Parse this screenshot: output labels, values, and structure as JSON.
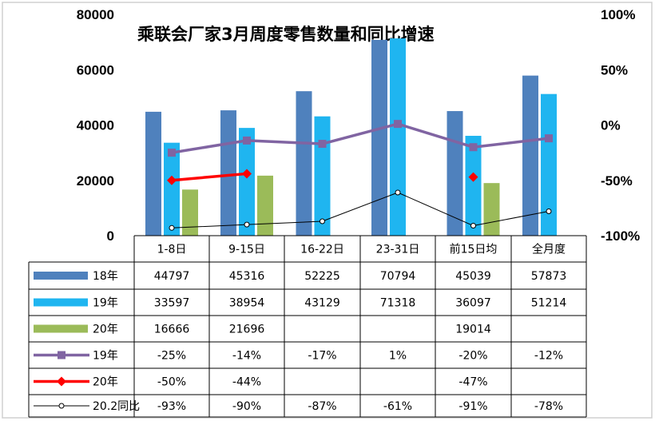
{
  "chart_data": {
    "type": "bar",
    "title": "乘联会厂家3月周度零售数量和同比增速",
    "categories": [
      "1-8日",
      "9-15日",
      "16-22日",
      "23-31日",
      "前15日均",
      "全月度"
    ],
    "ylim": [
      0,
      80000
    ],
    "y_ticks": [
      "0",
      "20000",
      "40000",
      "60000",
      "80000"
    ],
    "y2lim": [
      -100,
      100
    ],
    "y2_ticks": [
      "-100%",
      "-50%",
      "0%",
      "50%",
      "100%"
    ],
    "bar_series": [
      {
        "name": "18年",
        "color": "#4f81bd",
        "values": [
          44797,
          45316,
          52225,
          70794,
          45039,
          57873
        ],
        "labels": [
          "44797",
          "45316",
          "52225",
          "70794",
          "45039",
          "57873"
        ]
      },
      {
        "name": "19年",
        "color": "#1fb5f0",
        "values": [
          33597,
          38954,
          43129,
          71318,
          36097,
          51214
        ],
        "labels": [
          "33597",
          "38954",
          "43129",
          "71318",
          "36097",
          "51214"
        ]
      },
      {
        "name": "20年",
        "color": "#9bbb59",
        "values": [
          16666,
          21696,
          null,
          null,
          19014,
          null
        ],
        "labels": [
          "16666",
          "21696",
          "",
          "",
          "19014",
          ""
        ]
      }
    ],
    "line_series": [
      {
        "name": "19年",
        "color": "#8064a2",
        "marker": "square",
        "values": [
          -25,
          -14,
          -17,
          1,
          -20,
          -12
        ],
        "labels": [
          "-25%",
          "-14%",
          "-17%",
          "1%",
          "-20%",
          "-12%"
        ]
      },
      {
        "name": "20年",
        "color": "#ff0000",
        "marker": "diamond",
        "values": [
          -50,
          -44,
          null,
          null,
          -47,
          null
        ],
        "labels": [
          "-50%",
          "-44%",
          "",
          "",
          "-47%",
          ""
        ]
      },
      {
        "name": "20.2同比",
        "color": "#000000",
        "marker": "circle",
        "values": [
          -93,
          -90,
          -87,
          -61,
          -91,
          -78
        ],
        "labels": [
          "-93%",
          "-90%",
          "-87%",
          "-61%",
          "-91%",
          "-78%"
        ]
      }
    ],
    "grid": false,
    "legend": "data-table"
  }
}
